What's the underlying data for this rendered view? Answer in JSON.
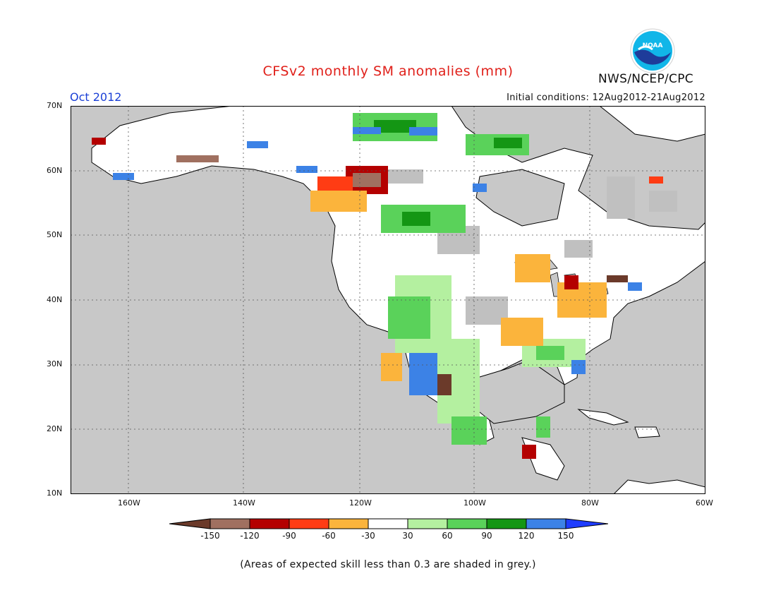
{
  "header": {
    "title": "CFSv2 monthly SM anomalies (mm)",
    "month": "Oct 2012",
    "initial_conditions": "Initial conditions: 12Aug2012-21Aug2012",
    "agency": "NWS/NCEP/CPC",
    "logo_text": "NOAA"
  },
  "map": {
    "region": "North America",
    "lat_labels": [
      "70N",
      "60N",
      "50N",
      "40N",
      "30N",
      "20N",
      "10N"
    ],
    "lon_labels": [
      "160W",
      "140W",
      "120W",
      "100W",
      "80W",
      "60W"
    ],
    "land_color": "#ffffff",
    "ocean_color": "#c8c8c8",
    "low_skill_color": "#c0c0c0"
  },
  "legend": {
    "tick_labels": [
      "-150",
      "-120",
      "-90",
      "-60",
      "-30",
      "30",
      "60",
      "90",
      "120",
      "150"
    ],
    "colors": [
      "#6b3a2a",
      "#a07060",
      "#b40000",
      "#ff3c14",
      "#fbb43c",
      "#ffffff",
      "#b4f0a0",
      "#5ad25a",
      "#149614",
      "#3c82e6",
      "#1e3cff"
    ]
  },
  "footnote": "(Areas of expected skill less than 0.3 are shaded in grey.)"
}
